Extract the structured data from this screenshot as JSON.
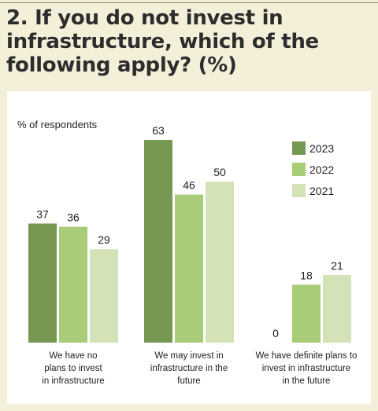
{
  "title": "2. If you do not invest in infrastructure, which of the following apply? (%)",
  "chart_data": {
    "type": "bar",
    "title": "2. If you do not invest in infrastructure, which of the following apply? (%)",
    "ylabel": "% of respondents",
    "ylim": [
      0,
      63
    ],
    "grid": false,
    "legend_position": "right",
    "categories": [
      [
        "We have no",
        "plans to invest",
        "in infrastructure"
      ],
      [
        "We may invest in",
        "infrastructure in the",
        "future"
      ],
      [
        "We have definite plans to",
        "invest in infrastructure",
        "in the future"
      ]
    ],
    "series": [
      {
        "name": "2023",
        "color": "#779852",
        "values": [
          37,
          63,
          0
        ]
      },
      {
        "name": "2022",
        "color": "#a9cc79",
        "values": [
          36,
          46,
          18
        ]
      },
      {
        "name": "2021",
        "color": "#d3e2b7",
        "values": [
          29,
          50,
          21
        ]
      }
    ]
  }
}
